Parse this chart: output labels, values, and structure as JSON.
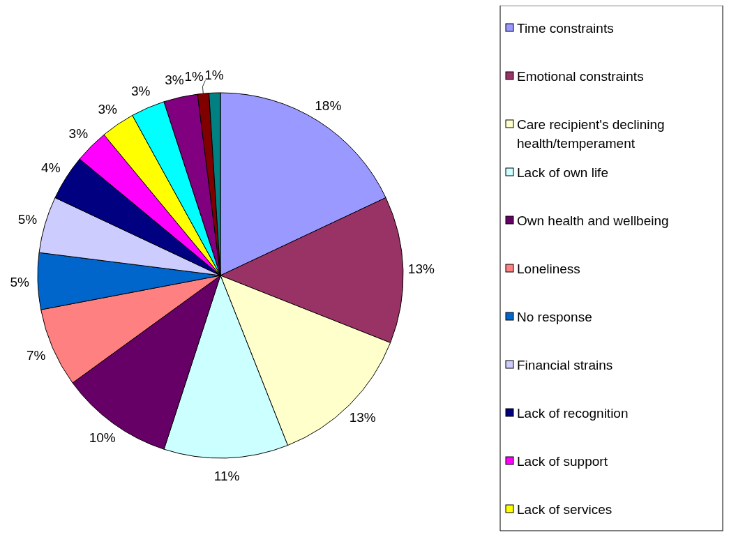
{
  "chart_data": {
    "type": "pie",
    "categories": [
      "Time constraints",
      "Emotional constraints",
      "Care recipient's declining health/temperament",
      "Lack of own life",
      "Own health and wellbeing",
      "Loneliness",
      "No response",
      "Financial strains",
      "Lack of recognition",
      "Lack of support",
      "Lack of services",
      null,
      null,
      null,
      null
    ],
    "values": [
      18,
      13,
      13,
      11,
      10,
      7,
      5,
      5,
      4,
      3,
      3,
      3,
      3,
      1,
      1
    ],
    "colors": [
      "#9999ff",
      "#993366",
      "#ffffcc",
      "#ccffff",
      "#660066",
      "#ff8080",
      "#0066cc",
      "#ccccff",
      "#000080",
      "#ff00ff",
      "#ffff00",
      "#00ffff",
      "#800080",
      "#800000",
      "#008080"
    ],
    "value_labels": [
      "18%",
      "13%",
      "13%",
      "11%",
      "10%",
      "7%",
      "5%",
      "5%",
      "4%",
      "3%",
      "3%",
      "3%",
      "3%",
      "1%",
      "1%"
    ],
    "legend": "right"
  }
}
